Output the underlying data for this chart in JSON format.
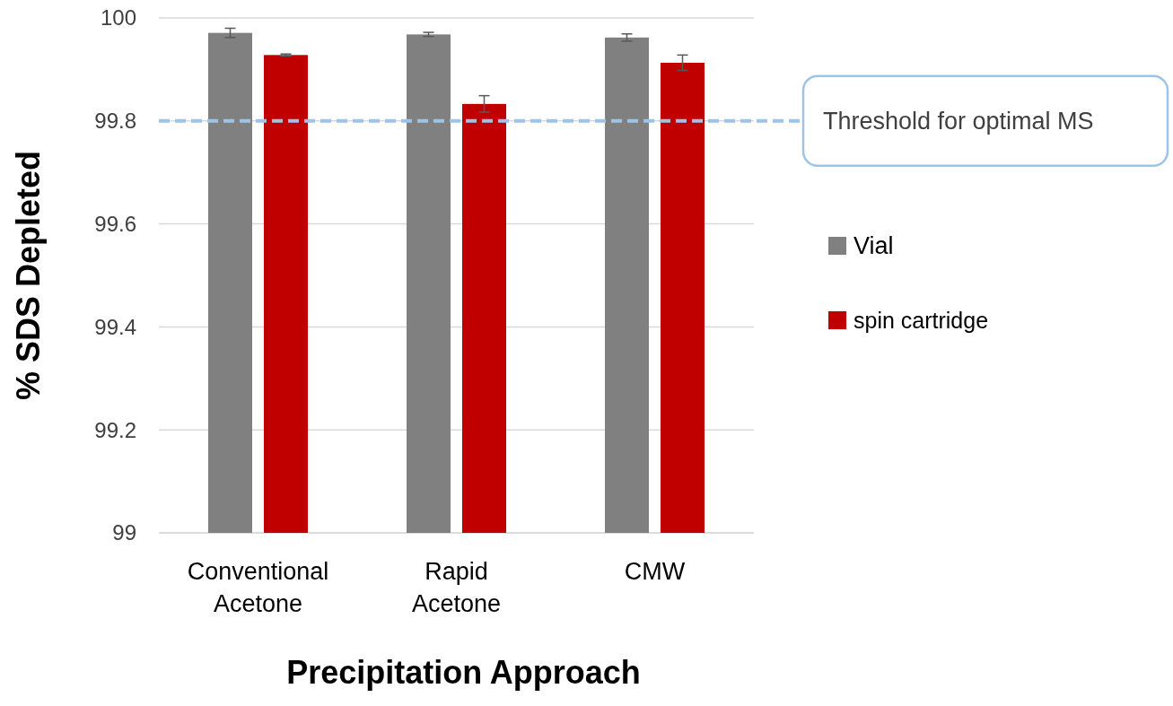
{
  "chart_data": {
    "type": "bar",
    "xlabel": "Precipitation Approach",
    "ylabel": "% SDS Depleted",
    "categories": [
      "Conventional Acetone",
      "Rapid Acetone",
      "CMW"
    ],
    "series": [
      {
        "name": "Vial",
        "color": "#808080",
        "values": [
          99.971,
          99.968,
          99.962
        ],
        "errors": [
          0.009,
          0.004,
          0.007
        ]
      },
      {
        "name": "spin cartridge",
        "color": "#c00000",
        "values": [
          99.928,
          99.833,
          99.913
        ],
        "errors": [
          0.002,
          0.016,
          0.015
        ]
      }
    ],
    "ylim": [
      99,
      100
    ],
    "yticks": [
      99,
      99.2,
      99.4,
      99.6,
      99.8,
      100
    ],
    "grid": "y",
    "legend": "right",
    "ref_lines": [
      {
        "axis": "y",
        "value": 99.8,
        "label": "Threshold for optimal MS",
        "color": "#9dc3e6",
        "line_style": "dashed"
      }
    ]
  }
}
